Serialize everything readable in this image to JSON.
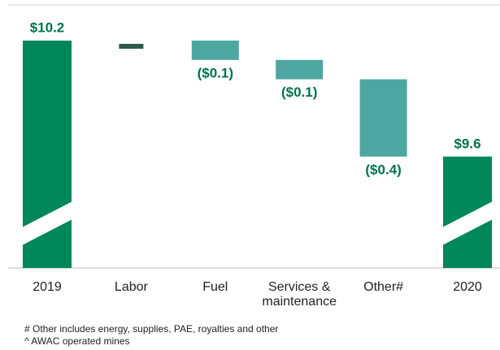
{
  "chart_data": {
    "type": "waterfall",
    "categories": [
      "2019",
      "Labor",
      "Fuel",
      "Services &\nmaintenance",
      "Other#",
      "2020"
    ],
    "values": [
      10.2,
      0,
      -0.1,
      -0.1,
      -0.4,
      9.6
    ],
    "value_labels": [
      "$10.2",
      null,
      "($0.1)",
      "($0.1)",
      "($0.4)",
      "$9.6"
    ],
    "colors": [
      "#00875a",
      "#2b5a47",
      "#4da6a0",
      "#4da6a0",
      "#4da6a0",
      "#00875a"
    ],
    "footnotes": [
      "# Other includes energy, supplies, PAE, royalties and other",
      "^ AWAC operated mines"
    ]
  }
}
